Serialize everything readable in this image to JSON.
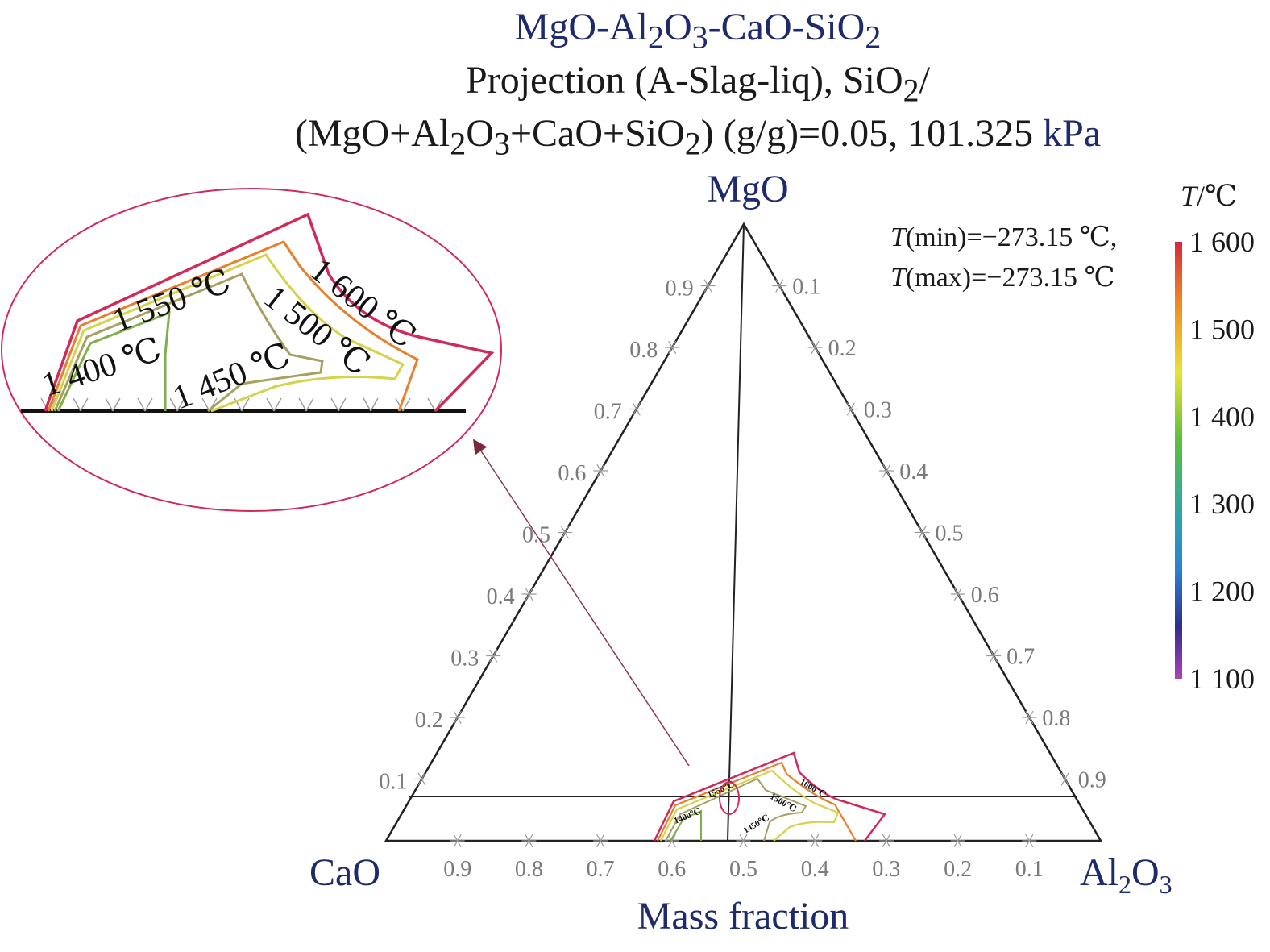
{
  "title": {
    "line1_parts": [
      "MgO-Al",
      "2",
      "O",
      "3",
      "-CaO-SiO",
      "2"
    ],
    "line2_parts": [
      "Projection (A-Slag-liq), SiO",
      "2",
      "/"
    ],
    "line3_parts": [
      "(MgO+Al",
      "2",
      "O",
      "3",
      "+CaO+SiO",
      "2",
      ") (g/g)=0.05, 101.325 ",
      "kPa"
    ]
  },
  "vertices": {
    "top": "MgO",
    "left": "CaO",
    "right_parts": [
      "Al",
      "2",
      "O",
      "3"
    ]
  },
  "axis_label": "Mass fraction",
  "colorbar": {
    "title_italic": "T",
    "title_rest": "/℃",
    "ticks": [
      "1 600",
      "1 500",
      "1 400",
      "1 300",
      "1 200",
      "1 100"
    ],
    "tick_values": [
      1600,
      1500,
      1400,
      1300,
      1200,
      1100
    ],
    "colors": [
      "#d7263d",
      "#f08a24",
      "#e8e337",
      "#5fbf3a",
      "#2fa6a6",
      "#2b7fd6",
      "#2d2f8f",
      "#b13fb6"
    ]
  },
  "t_range": {
    "min_italic": "T",
    "min_rest": "(min)=−273.15 ℃,",
    "max_italic": "T",
    "max_rest": "(max)=−273.15 ℃"
  },
  "chart_data": {
    "type": "ternary-contour",
    "components": [
      "MgO",
      "Al2O3",
      "CaO"
    ],
    "left_edge_ticks": [
      "0.9",
      "0.8",
      "0.7",
      "0.6",
      "0.5",
      "0.4",
      "0.3",
      "0.2",
      "0.1"
    ],
    "right_edge_ticks": [
      "0.1",
      "0.2",
      "0.3",
      "0.4",
      "0.5",
      "0.6",
      "0.7",
      "0.8",
      "0.9"
    ],
    "bottom_edge_ticks": [
      "0.9",
      "0.8",
      "0.7",
      "0.6",
      "0.5",
      "0.4",
      "0.3",
      "0.2",
      "0.1"
    ],
    "isotherms": [
      {
        "name": "1 400 ℃",
        "small_label": "1400℃",
        "color": "#7fae4a"
      },
      {
        "name": "1 450 ℃",
        "small_label": "1450℃",
        "color": "#a8a060"
      },
      {
        "name": "1 500 ℃",
        "small_label": "1500℃",
        "color": "#d6d24a"
      },
      {
        "name": "1 550 ℃",
        "small_label": "1550℃",
        "color": "#e87f2a"
      },
      {
        "name": "1 600 ℃",
        "small_label": "1600℃",
        "color": "#d2285a"
      }
    ],
    "zoom_labels": [
      "1 600 ℃",
      "1 550 ℃",
      "1 500 ℃",
      "1 450 ℃",
      "1 400 ℃"
    ]
  }
}
